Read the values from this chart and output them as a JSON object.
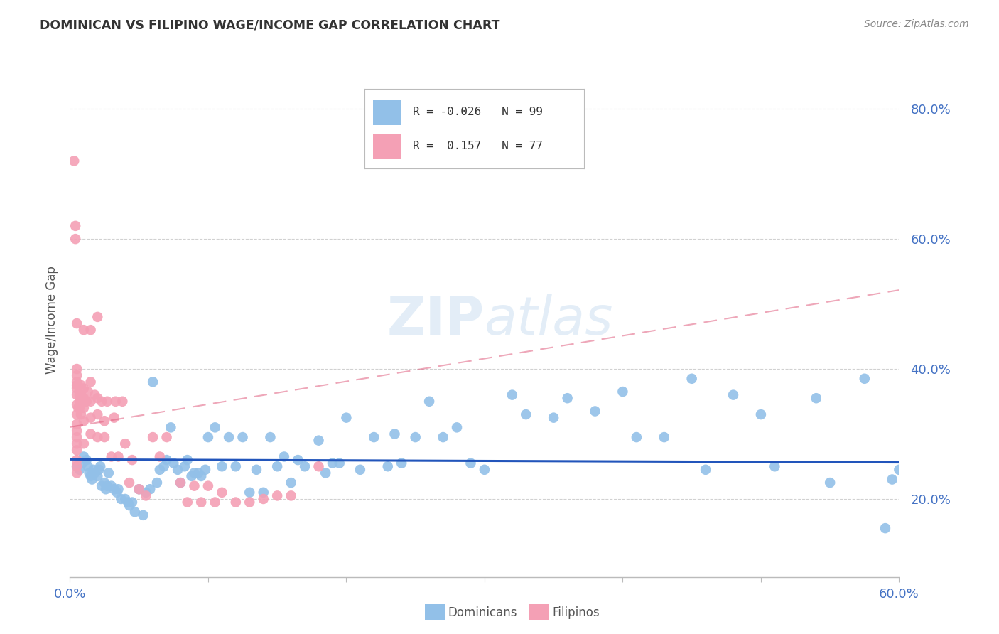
{
  "title": "DOMINICAN VS FILIPINO WAGE/INCOME GAP CORRELATION CHART",
  "source": "Source: ZipAtlas.com",
  "ylabel": "Wage/Income Gap",
  "ytick_vals": [
    0.2,
    0.4,
    0.6,
    0.8
  ],
  "ytick_labels": [
    "20.0%",
    "40.0%",
    "60.0%",
    "80.0%"
  ],
  "xtick_vals": [
    0.0,
    0.1,
    0.2,
    0.3,
    0.4,
    0.5,
    0.6
  ],
  "xtick_labels": [
    "0.0%",
    "",
    "",
    "",
    "",
    "",
    "60.0%"
  ],
  "xmin": 0.0,
  "xmax": 0.6,
  "ymin": 0.08,
  "ymax": 0.87,
  "dominicans_color": "#92C0E8",
  "filipinos_color": "#F4A0B5",
  "trendline_blue": "#2255BB",
  "trendline_pink": "#E06080",
  "legend_blue_r": -0.026,
  "legend_blue_n": 99,
  "legend_pink_r": 0.157,
  "legend_pink_n": 77,
  "dom_x": [
    0.005,
    0.007,
    0.009,
    0.01,
    0.012,
    0.013,
    0.014,
    0.015,
    0.016,
    0.017,
    0.018,
    0.02,
    0.021,
    0.022,
    0.023,
    0.025,
    0.026,
    0.027,
    0.028,
    0.03,
    0.032,
    0.034,
    0.035,
    0.037,
    0.04,
    0.042,
    0.043,
    0.045,
    0.047,
    0.05,
    0.053,
    0.055,
    0.058,
    0.06,
    0.063,
    0.065,
    0.068,
    0.07,
    0.073,
    0.075,
    0.078,
    0.08,
    0.083,
    0.085,
    0.088,
    0.09,
    0.093,
    0.095,
    0.098,
    0.1,
    0.105,
    0.11,
    0.115,
    0.12,
    0.125,
    0.13,
    0.135,
    0.14,
    0.145,
    0.15,
    0.155,
    0.16,
    0.165,
    0.17,
    0.18,
    0.185,
    0.19,
    0.195,
    0.2,
    0.21,
    0.22,
    0.23,
    0.235,
    0.24,
    0.25,
    0.26,
    0.27,
    0.28,
    0.29,
    0.3,
    0.32,
    0.33,
    0.35,
    0.36,
    0.38,
    0.4,
    0.41,
    0.43,
    0.45,
    0.46,
    0.48,
    0.5,
    0.51,
    0.54,
    0.55,
    0.575,
    0.59,
    0.595,
    0.6
  ],
  "dom_y": [
    0.25,
    0.245,
    0.255,
    0.265,
    0.26,
    0.25,
    0.24,
    0.235,
    0.23,
    0.245,
    0.24,
    0.235,
    0.245,
    0.25,
    0.22,
    0.225,
    0.215,
    0.22,
    0.24,
    0.22,
    0.215,
    0.21,
    0.215,
    0.2,
    0.2,
    0.195,
    0.19,
    0.195,
    0.18,
    0.215,
    0.175,
    0.21,
    0.215,
    0.38,
    0.225,
    0.245,
    0.25,
    0.26,
    0.31,
    0.255,
    0.245,
    0.225,
    0.25,
    0.26,
    0.235,
    0.24,
    0.24,
    0.235,
    0.245,
    0.295,
    0.31,
    0.25,
    0.295,
    0.25,
    0.295,
    0.21,
    0.245,
    0.21,
    0.295,
    0.25,
    0.265,
    0.225,
    0.26,
    0.25,
    0.29,
    0.24,
    0.255,
    0.255,
    0.325,
    0.245,
    0.295,
    0.25,
    0.3,
    0.255,
    0.295,
    0.35,
    0.295,
    0.31,
    0.255,
    0.245,
    0.36,
    0.33,
    0.325,
    0.355,
    0.335,
    0.365,
    0.295,
    0.295,
    0.385,
    0.245,
    0.36,
    0.33,
    0.25,
    0.355,
    0.225,
    0.385,
    0.155,
    0.23,
    0.245
  ],
  "fil_x": [
    0.003,
    0.004,
    0.004,
    0.005,
    0.005,
    0.005,
    0.005,
    0.005,
    0.005,
    0.005,
    0.005,
    0.005,
    0.005,
    0.005,
    0.005,
    0.005,
    0.005,
    0.005,
    0.005,
    0.005,
    0.006,
    0.007,
    0.007,
    0.007,
    0.008,
    0.008,
    0.008,
    0.008,
    0.009,
    0.01,
    0.01,
    0.01,
    0.01,
    0.01,
    0.01,
    0.012,
    0.013,
    0.015,
    0.015,
    0.015,
    0.015,
    0.015,
    0.018,
    0.02,
    0.02,
    0.02,
    0.02,
    0.023,
    0.025,
    0.025,
    0.027,
    0.03,
    0.032,
    0.033,
    0.035,
    0.038,
    0.04,
    0.043,
    0.045,
    0.05,
    0.055,
    0.06,
    0.065,
    0.07,
    0.08,
    0.085,
    0.09,
    0.095,
    0.1,
    0.105,
    0.11,
    0.12,
    0.13,
    0.14,
    0.15,
    0.16,
    0.18
  ],
  "fil_y": [
    0.72,
    0.6,
    0.62,
    0.24,
    0.25,
    0.26,
    0.275,
    0.285,
    0.295,
    0.305,
    0.315,
    0.33,
    0.345,
    0.36,
    0.37,
    0.375,
    0.38,
    0.39,
    0.4,
    0.47,
    0.34,
    0.34,
    0.35,
    0.36,
    0.33,
    0.345,
    0.36,
    0.375,
    0.355,
    0.285,
    0.32,
    0.34,
    0.355,
    0.37,
    0.46,
    0.35,
    0.365,
    0.3,
    0.325,
    0.35,
    0.38,
    0.46,
    0.36,
    0.295,
    0.33,
    0.355,
    0.48,
    0.35,
    0.295,
    0.32,
    0.35,
    0.265,
    0.325,
    0.35,
    0.265,
    0.35,
    0.285,
    0.225,
    0.26,
    0.215,
    0.205,
    0.295,
    0.265,
    0.295,
    0.225,
    0.195,
    0.22,
    0.195,
    0.22,
    0.195,
    0.21,
    0.195,
    0.195,
    0.2,
    0.205,
    0.205,
    0.25
  ]
}
